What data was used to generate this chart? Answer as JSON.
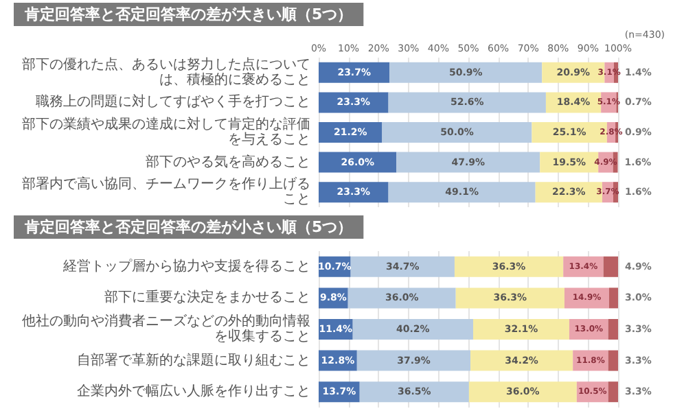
{
  "chart_data": [
    {
      "type": "bar",
      "orientation": "horizontal",
      "stacked": true,
      "title": "肯定回答率と否定回答率の差が大きい順（5つ）",
      "annotations": [
        "(n=430)"
      ],
      "grid": "x",
      "categories": [
        "部下の優れた点、あるいは努力した点については、積極的に褒めること",
        "職務上の問題に対してすばやく手を打つこと",
        "部下の業績や成果の達成に対して肯定的な評価を与えること",
        "部下のやる気を高めること",
        "部署内で高い協同、チームワークを作り上げること"
      ],
      "xlim": [
        0,
        100
      ],
      "xticks": [
        {
          "value": 0,
          "label": "0%"
        },
        {
          "value": 10,
          "label": "10%"
        },
        {
          "value": 20,
          "label": "20%"
        },
        {
          "value": 30,
          "label": "30%"
        },
        {
          "value": 40,
          "label": "40%"
        },
        {
          "value": 50,
          "label": "50%"
        },
        {
          "value": 60,
          "label": "60%"
        },
        {
          "value": 70,
          "label": "70%"
        },
        {
          "value": 80,
          "label": "80%"
        },
        {
          "value": 90,
          "label": "90%"
        },
        {
          "value": 100,
          "label": "100%"
        }
      ],
      "series": [
        {
          "color": "#4b73b1",
          "values": [
            23.7,
            23.3,
            21.2,
            26.0,
            23.3
          ],
          "value_labels": [
            "23.7%",
            "23.3%",
            "21.2%",
            "26.0%",
            "23.3%"
          ]
        },
        {
          "color": "#b8cce2",
          "values": [
            50.9,
            52.6,
            50.0,
            47.9,
            49.1
          ],
          "value_labels": [
            "50.9%",
            "52.6%",
            "50.0%",
            "47.9%",
            "49.1%"
          ]
        },
        {
          "color": "#f6eba3",
          "values": [
            20.9,
            18.4,
            25.1,
            19.5,
            22.3
          ],
          "value_labels": [
            "20.9%",
            "18.4%",
            "25.1%",
            "19.5%",
            "22.3%"
          ]
        },
        {
          "color": "#e9a4ad",
          "values": [
            3.1,
            5.1,
            2.8,
            4.9,
            3.7
          ],
          "value_labels": [
            "3.1%",
            "5.1%",
            "2.8%",
            "4.9%",
            "3.7%"
          ]
        },
        {
          "color": "#b95f62",
          "values": [
            1.4,
            0.7,
            0.9,
            1.6,
            1.6
          ],
          "value_labels": [
            "1.4%",
            "0.7%",
            "0.9%",
            "1.6%",
            "1.6%"
          ]
        }
      ]
    },
    {
      "type": "bar",
      "orientation": "horizontal",
      "stacked": true,
      "title": "肯定回答率と否定回答率の差が小さい順（5つ）",
      "grid": "x",
      "tick_labels": "y",
      "categories": [
        "経営トップ層から協力や支援を得ること",
        "部下に重要な決定をまかせること",
        "他社の動向や消費者ニーズなどの外的動向情報を収集すること",
        "自部署で革新的な課題に取り組むこと",
        "企業内外で幅広い人脈を作り出すこと"
      ],
      "xlim": [
        0,
        100
      ],
      "xticks": [
        {
          "value": 0,
          "label": null
        },
        {
          "value": 10,
          "label": null
        },
        {
          "value": 20,
          "label": null
        },
        {
          "value": 30,
          "label": null
        },
        {
          "value": 40,
          "label": null
        },
        {
          "value": 50,
          "label": null
        },
        {
          "value": 60,
          "label": null
        },
        {
          "value": 70,
          "label": null
        },
        {
          "value": 80,
          "label": null
        },
        {
          "value": 90,
          "label": null
        },
        {
          "value": 100,
          "label": null
        }
      ],
      "series": [
        {
          "color": "#4b73b1",
          "values": [
            10.7,
            9.8,
            11.4,
            12.8,
            13.7
          ],
          "value_labels": [
            "10.7%",
            "9.8%",
            "11.4%",
            "12.8%",
            "13.7%"
          ]
        },
        {
          "color": "#b8cce2",
          "values": [
            34.7,
            36.0,
            40.2,
            37.9,
            36.5
          ],
          "value_labels": [
            "34.7%",
            "36.0%",
            "40.2%",
            "37.9%",
            "36.5%"
          ]
        },
        {
          "color": "#f6eba3",
          "values": [
            36.3,
            36.3,
            32.1,
            34.2,
            36.0
          ],
          "value_labels": [
            "36.3%",
            "36.3%",
            "32.1%",
            "34.2%",
            "36.0%"
          ]
        },
        {
          "color": "#e9a4ad",
          "values": [
            13.4,
            14.9,
            13.0,
            11.8,
            10.5
          ],
          "value_labels": [
            "13.4%",
            "14.9%",
            "13.0%",
            "11.8%",
            "10.5%"
          ]
        },
        {
          "color": "#b95f62",
          "values": [
            4.9,
            3.0,
            3.3,
            3.3,
            3.3
          ],
          "value_labels": [
            "4.9%",
            "3.0%",
            "3.3%",
            "3.3%",
            "3.3%"
          ]
        }
      ]
    }
  ]
}
